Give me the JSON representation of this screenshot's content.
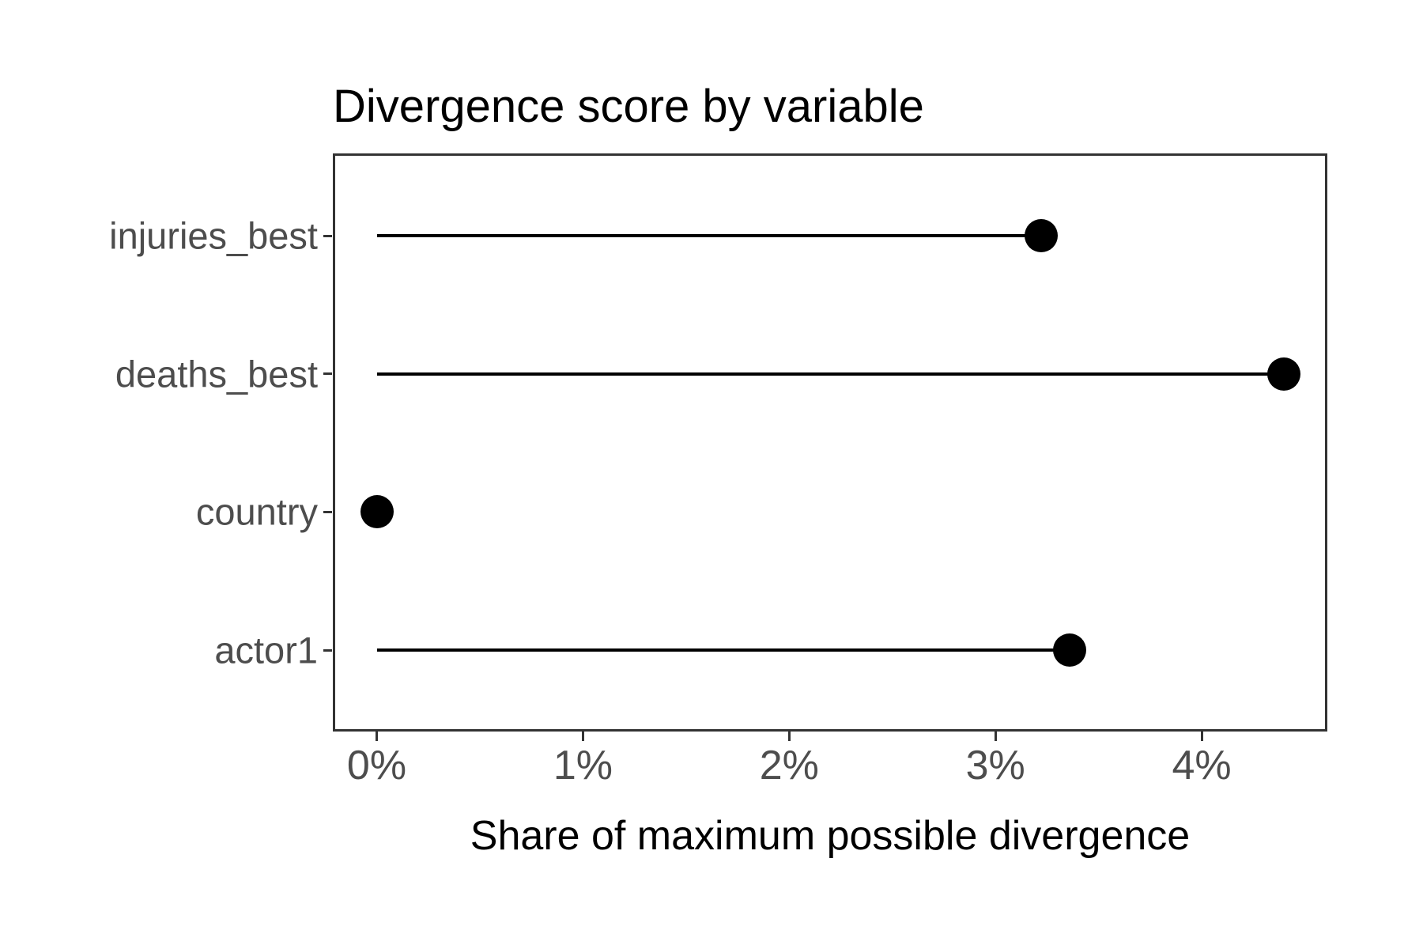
{
  "chart_data": {
    "type": "scatter",
    "style": "lollipop",
    "orientation": "horizontal",
    "title": "Divergence score by variable",
    "xlabel": "Share of maximum possible divergence",
    "ylabel": "",
    "categories": [
      "injuries_best",
      "deaths_best",
      "country",
      "actor1"
    ],
    "values_pct": [
      3.22,
      4.4,
      0.0,
      3.36
    ],
    "x_ticks_pct": [
      0,
      1,
      2,
      3,
      4
    ],
    "x_tick_labels": [
      "0%",
      "1%",
      "2%",
      "3%",
      "4%"
    ],
    "xlim_pct": [
      -0.21,
      4.61
    ],
    "grid": "off",
    "legend": "none",
    "colors": {
      "point": "#000000",
      "stem": "#000000",
      "axis_text": "#4D4D4D",
      "axis_title": "#000000",
      "plot_title": "#000000",
      "panel_border": "#333333",
      "background": "#FFFFFF"
    }
  }
}
